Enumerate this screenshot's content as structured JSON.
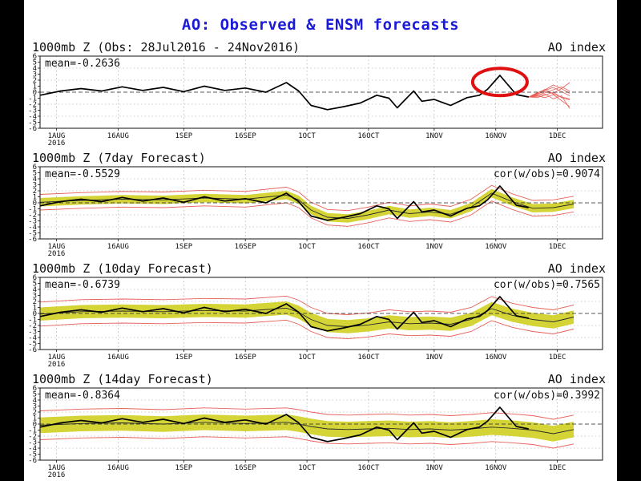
{
  "title": "AO: Observed & ENSM forecasts",
  "colors": {
    "title": "#1a1ad8",
    "obs": "#000000",
    "band": "#d4d436",
    "spread": "#e8605a",
    "ens_mean": "#2a2a2a",
    "highlight": "#e01010"
  },
  "chart_data": [
    {
      "type": "line",
      "panel_title": "1000mb Z (Obs: 28Jul2016 - 24Nov2016)",
      "right_label": "AO index",
      "stat_text": "mean=-0.2636",
      "cor_text": "",
      "x_tick_labels": [
        "1AUG\n2016",
        "16AUG",
        "1SEP",
        "16SEP",
        "1OCT",
        "16OCT",
        "1NOV",
        "16NOV",
        "1DEC"
      ],
      "y_tick_labels": [
        "6",
        "5",
        "4",
        "3",
        "2",
        "1",
        "0",
        "-1",
        "-2",
        "-3",
        "-4",
        "-5",
        "-6"
      ],
      "ylim": [
        -6,
        6
      ],
      "grid": true,
      "has_band": false,
      "highlight": {
        "type": "circle",
        "x": 112,
        "y": 1.7
      },
      "observed": {
        "x": [
          0,
          5,
          10,
          15,
          20,
          25,
          30,
          35,
          40,
          45,
          50,
          55,
          60,
          63,
          66,
          70,
          74,
          78,
          82,
          85,
          87,
          89,
          91,
          93,
          96,
          98,
          100,
          104,
          107,
          109,
          112,
          114,
          116,
          119
        ],
        "y": [
          -0.5,
          0.2,
          0.6,
          0.2,
          0.9,
          0.3,
          0.8,
          0.1,
          1.0,
          0.3,
          0.7,
          0.0,
          1.6,
          0.2,
          -2.2,
          -2.9,
          -2.4,
          -1.8,
          -0.5,
          -1.0,
          -2.6,
          -1.2,
          0.2,
          -1.5,
          -1.2,
          -1.7,
          -2.2,
          -0.9,
          -0.5,
          0.5,
          2.8,
          1.2,
          -0.4,
          -0.8
        ]
      },
      "members_x": [
        119,
        121,
        123,
        125,
        127,
        129
      ],
      "members_y": [
        [
          -0.8,
          -0.3,
          0.1,
          -0.2,
          0.6,
          1.6
        ],
        [
          -0.8,
          -0.5,
          -0.1,
          0.4,
          0.9,
          0.2
        ],
        [
          -0.8,
          -0.2,
          0.5,
          -0.3,
          -0.8,
          -1.1
        ],
        [
          -0.8,
          -0.6,
          -0.9,
          -0.4,
          -1.4,
          -2.4
        ],
        [
          -0.8,
          -0.4,
          0.3,
          0.8,
          0.1,
          -0.6
        ],
        [
          -0.8,
          -0.7,
          -0.3,
          -1.1,
          -0.6,
          -2.7
        ],
        [
          -0.8,
          -0.1,
          0.4,
          1.2,
          0.6,
          -0.2
        ],
        [
          -0.8,
          -0.9,
          -0.5,
          0.0,
          -0.9,
          -1.3
        ]
      ]
    },
    {
      "type": "line",
      "panel_title": "1000mb Z (7day Forecast)",
      "right_label": "AO index",
      "stat_text": "mean=-0.5529",
      "cor_text": "cor(w/obs)=0.9074",
      "x_tick_labels": [
        "1AUG\n2016",
        "16AUG",
        "1SEP",
        "16SEP",
        "1OCT",
        "16OCT",
        "1NOV",
        "16NOV",
        "1DEC"
      ],
      "y_tick_labels": [
        "6",
        "5",
        "4",
        "3",
        "2",
        "1",
        "0",
        "-1",
        "-2",
        "-3",
        "-4",
        "-5",
        "-6"
      ],
      "ylim": [
        -6,
        6
      ],
      "grid": true,
      "has_band": true,
      "band": {
        "x": [
          0,
          10,
          20,
          30,
          40,
          50,
          60,
          63,
          66,
          70,
          75,
          80,
          85,
          90,
          95,
          100,
          105,
          110,
          115,
          120,
          125,
          130
        ],
        "mean": [
          0.1,
          0.4,
          0.6,
          0.5,
          0.8,
          0.6,
          1.3,
          0.5,
          -1.2,
          -2.4,
          -2.6,
          -2.0,
          -1.2,
          -1.8,
          -1.5,
          -1.9,
          -0.7,
          1.6,
          0.2,
          -0.9,
          -0.8,
          -0.2
        ],
        "half_width": 0.7,
        "outer_width": 1.3
      },
      "observed": {
        "x": [
          0,
          5,
          10,
          15,
          20,
          25,
          30,
          35,
          40,
          45,
          50,
          55,
          60,
          63,
          66,
          70,
          74,
          78,
          82,
          85,
          87,
          89,
          91,
          93,
          96,
          98,
          100,
          104,
          107,
          109,
          112,
          114,
          116,
          119
        ],
        "y": [
          -0.5,
          0.2,
          0.6,
          0.2,
          0.9,
          0.3,
          0.8,
          0.1,
          1.0,
          0.3,
          0.7,
          0.0,
          1.6,
          0.2,
          -2.2,
          -2.9,
          -2.4,
          -1.8,
          -0.5,
          -1.0,
          -2.6,
          -1.2,
          0.2,
          -1.5,
          -1.2,
          -1.7,
          -2.2,
          -0.9,
          -0.5,
          0.5,
          2.8,
          1.2,
          -0.4,
          -0.8
        ]
      }
    },
    {
      "type": "line",
      "panel_title": "1000mb Z (10day Forecast)",
      "right_label": "AO index",
      "stat_text": "mean=-0.6739",
      "cor_text": "cor(w/obs)=0.7565",
      "x_tick_labels": [
        "1AUG\n2016",
        "16AUG",
        "1SEP",
        "16SEP",
        "1OCT",
        "16OCT",
        "1NOV",
        "16NOV",
        "1DEC"
      ],
      "y_tick_labels": [
        "6",
        "5",
        "4",
        "3",
        "2",
        "1",
        "0",
        "-1",
        "-2",
        "-3",
        "-4",
        "-5",
        "-6"
      ],
      "ylim": [
        -6,
        6
      ],
      "grid": true,
      "has_band": true,
      "band": {
        "x": [
          0,
          10,
          20,
          30,
          40,
          50,
          60,
          63,
          66,
          70,
          75,
          80,
          85,
          90,
          95,
          100,
          105,
          110,
          115,
          120,
          125,
          130
        ],
        "mean": [
          -0.1,
          0.3,
          0.4,
          0.3,
          0.5,
          0.4,
          0.9,
          0.2,
          -1.0,
          -2.0,
          -2.2,
          -1.9,
          -1.4,
          -1.7,
          -1.6,
          -1.8,
          -1.0,
          0.8,
          -0.3,
          -1.0,
          -1.4,
          -0.6
        ],
        "half_width": 1.1,
        "outer_width": 2.0
      },
      "observed": {
        "x": [
          0,
          5,
          10,
          15,
          20,
          25,
          30,
          35,
          40,
          45,
          50,
          55,
          60,
          63,
          66,
          70,
          74,
          78,
          82,
          85,
          87,
          89,
          91,
          93,
          96,
          98,
          100,
          104,
          107,
          109,
          112,
          114,
          116,
          119
        ],
        "y": [
          -0.5,
          0.2,
          0.6,
          0.2,
          0.9,
          0.3,
          0.8,
          0.1,
          1.0,
          0.3,
          0.7,
          0.0,
          1.6,
          0.2,
          -2.2,
          -2.9,
          -2.4,
          -1.8,
          -0.5,
          -1.0,
          -2.6,
          -1.2,
          0.2,
          -1.5,
          -1.2,
          -1.7,
          -2.2,
          -0.9,
          -0.5,
          0.5,
          2.8,
          1.2,
          -0.4,
          -0.8
        ]
      }
    },
    {
      "type": "line",
      "panel_title": "1000mb Z (14day Forecast)",
      "right_label": "AO index",
      "stat_text": "mean=-0.8364",
      "cor_text": "cor(w/obs)=0.3992",
      "x_tick_labels": [
        "1AUG\n2016",
        "16AUG",
        "1SEP",
        "16SEP",
        "1OCT",
        "16OCT",
        "1NOV",
        "16NOV",
        "1DEC"
      ],
      "y_tick_labels": [
        "6",
        "5",
        "4",
        "3",
        "2",
        "1",
        "0",
        "-1",
        "-2",
        "-3",
        "-4",
        "-5",
        "-6"
      ],
      "ylim": [
        -6,
        6
      ],
      "grid": true,
      "has_band": true,
      "band": {
        "x": [
          0,
          10,
          20,
          30,
          40,
          50,
          60,
          63,
          66,
          70,
          75,
          80,
          85,
          90,
          95,
          100,
          105,
          110,
          115,
          120,
          125,
          130
        ],
        "mean": [
          -0.2,
          0.1,
          0.2,
          0.0,
          0.3,
          0.1,
          0.3,
          0.0,
          -0.4,
          -0.8,
          -0.9,
          -0.8,
          -0.7,
          -0.9,
          -0.8,
          -1.0,
          -0.8,
          -0.5,
          -0.7,
          -1.0,
          -1.6,
          -0.9
        ],
        "half_width": 1.3,
        "outer_width": 2.4
      },
      "observed": {
        "x": [
          0,
          5,
          10,
          15,
          20,
          25,
          30,
          35,
          40,
          45,
          50,
          55,
          60,
          63,
          66,
          70,
          74,
          78,
          82,
          85,
          87,
          89,
          91,
          93,
          96,
          98,
          100,
          104,
          107,
          109,
          112,
          114,
          116,
          119
        ],
        "y": [
          -0.5,
          0.2,
          0.6,
          0.2,
          0.9,
          0.3,
          0.8,
          0.1,
          1.0,
          0.3,
          0.7,
          0.0,
          1.6,
          0.2,
          -2.2,
          -2.9,
          -2.4,
          -1.8,
          -0.5,
          -1.0,
          -2.6,
          -1.2,
          0.2,
          -1.5,
          -1.2,
          -1.7,
          -2.2,
          -0.9,
          -0.5,
          0.5,
          2.8,
          1.2,
          -0.4,
          -0.8
        ]
      }
    }
  ]
}
